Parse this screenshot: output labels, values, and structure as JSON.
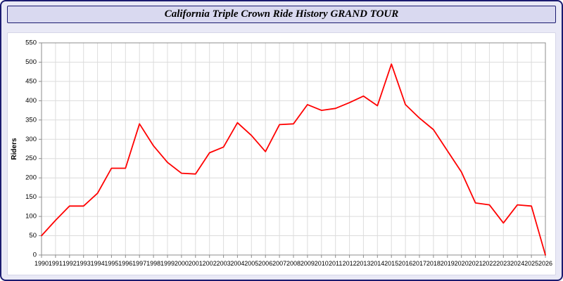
{
  "title": "California Triple Crown Ride History GRAND TOUR",
  "colors": {
    "page_bg": "#e9e9f6",
    "outer_border": "#1b1b70",
    "title_bg": "#d9d9f0",
    "panel_bg": "#ffffff",
    "grid": "#dcdcdc",
    "axis": "#8c8c8c",
    "line": "#ff0000",
    "text": "#000000"
  },
  "chart_data": {
    "type": "line",
    "title": "California Triple Crown Ride History GRAND TOUR",
    "xlabel": "",
    "ylabel": "Riders",
    "ylim": [
      0,
      550
    ],
    "ytick_step": 50,
    "grid": true,
    "legend": "none",
    "series_name": "Riders",
    "categories": [
      "1990",
      "1991",
      "1992",
      "1993",
      "1994",
      "1995",
      "1996",
      "1997",
      "1998",
      "1999",
      "2000",
      "2001",
      "2002",
      "2003",
      "2004",
      "2005",
      "2006",
      "2007",
      "2008",
      "2009",
      "2010",
      "2011",
      "2012",
      "2013",
      "2014",
      "2015",
      "2016",
      "2017",
      "2018",
      "2019",
      "2020",
      "2021",
      "2022",
      "2023",
      "2024",
      "2025",
      "2026"
    ],
    "values": [
      50,
      90,
      127,
      127,
      160,
      225,
      225,
      340,
      283,
      240,
      212,
      210,
      265,
      280,
      343,
      310,
      268,
      338,
      340,
      390,
      375,
      380,
      395,
      412,
      387,
      495,
      390,
      355,
      325,
      270,
      215,
      135,
      130,
      83,
      130,
      127,
      0
    ]
  }
}
